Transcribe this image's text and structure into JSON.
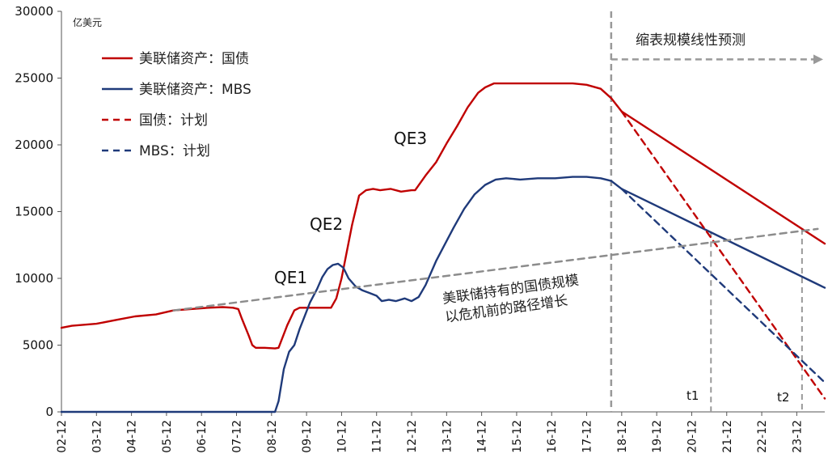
{
  "chart_data": {
    "type": "line",
    "unit_label": "亿美元",
    "ylim": [
      0,
      30000
    ],
    "y_ticks": [
      0,
      5000,
      10000,
      15000,
      20000,
      25000,
      30000
    ],
    "x_categories": [
      "02-12",
      "03-12",
      "04-12",
      "05-12",
      "06-12",
      "07-12",
      "08-12",
      "09-12",
      "10-12",
      "11-12",
      "12-12",
      "13-12",
      "14-12",
      "15-12",
      "16-12",
      "17-12",
      "18-12",
      "19-12",
      "20-12",
      "21-12",
      "22-12",
      "23-12"
    ],
    "x_range": [
      2002.9,
      2024.7
    ],
    "legend": [
      {
        "label": "美联储资产：国债",
        "color": "#c00000",
        "style": "solid"
      },
      {
        "label": "美联储资产：MBS",
        "color": "#1f3a7a",
        "style": "solid"
      },
      {
        "label": "国债：计划",
        "color": "#c00000",
        "style": "dashed"
      },
      {
        "label": "MBS：计划",
        "color": "#1f3a7a",
        "style": "dashed"
      }
    ],
    "series": [
      {
        "name": "美联储资产：国债",
        "color": "#c00000",
        "dash": false,
        "points": [
          [
            2002.9,
            6300
          ],
          [
            2003.2,
            6450
          ],
          [
            2003.9,
            6600
          ],
          [
            2004.5,
            6900
          ],
          [
            2005.0,
            7150
          ],
          [
            2005.6,
            7300
          ],
          [
            2006.1,
            7600
          ],
          [
            2006.6,
            7700
          ],
          [
            2007.1,
            7800
          ],
          [
            2007.5,
            7850
          ],
          [
            2007.8,
            7800
          ],
          [
            2007.95,
            7700
          ],
          [
            2008.05,
            7000
          ],
          [
            2008.25,
            5700
          ],
          [
            2008.35,
            5000
          ],
          [
            2008.45,
            4800
          ],
          [
            2008.7,
            4800
          ],
          [
            2009.0,
            4750
          ],
          [
            2009.1,
            4800
          ],
          [
            2009.35,
            6500
          ],
          [
            2009.55,
            7600
          ],
          [
            2009.7,
            7800
          ],
          [
            2010.2,
            7800
          ],
          [
            2010.6,
            7800
          ],
          [
            2010.75,
            8500
          ],
          [
            2010.9,
            10000
          ],
          [
            2011.05,
            12000
          ],
          [
            2011.2,
            14000
          ],
          [
            2011.4,
            16200
          ],
          [
            2011.6,
            16600
          ],
          [
            2011.8,
            16700
          ],
          [
            2012.0,
            16600
          ],
          [
            2012.3,
            16700
          ],
          [
            2012.6,
            16500
          ],
          [
            2012.9,
            16600
          ],
          [
            2013.0,
            16600
          ],
          [
            2013.3,
            17700
          ],
          [
            2013.6,
            18700
          ],
          [
            2013.9,
            20100
          ],
          [
            2014.2,
            21400
          ],
          [
            2014.5,
            22800
          ],
          [
            2014.8,
            23900
          ],
          [
            2015.0,
            24300
          ],
          [
            2015.25,
            24600
          ],
          [
            2015.5,
            24600
          ],
          [
            2016.0,
            24600
          ],
          [
            2016.5,
            24600
          ],
          [
            2017.0,
            24600
          ],
          [
            2017.5,
            24600
          ],
          [
            2017.9,
            24500
          ],
          [
            2018.3,
            24200
          ],
          [
            2018.6,
            23500
          ],
          [
            2018.9,
            22500
          ]
        ]
      },
      {
        "name": "美联储资产：国债（预测）",
        "color": "#c00000",
        "dash": false,
        "points": [
          [
            2018.9,
            22500
          ],
          [
            2024.7,
            12600
          ]
        ]
      },
      {
        "name": "美联储资产：MBS",
        "color": "#1f3a7a",
        "dash": false,
        "points": [
          [
            2002.9,
            0
          ],
          [
            2008.9,
            0
          ],
          [
            2009.0,
            0
          ],
          [
            2009.1,
            800
          ],
          [
            2009.25,
            3200
          ],
          [
            2009.4,
            4500
          ],
          [
            2009.55,
            5000
          ],
          [
            2009.7,
            6200
          ],
          [
            2009.85,
            7200
          ],
          [
            2010.0,
            8200
          ],
          [
            2010.2,
            9200
          ],
          [
            2010.35,
            10100
          ],
          [
            2010.5,
            10700
          ],
          [
            2010.65,
            11000
          ],
          [
            2010.8,
            11100
          ],
          [
            2010.95,
            10800
          ],
          [
            2011.1,
            10000
          ],
          [
            2011.3,
            9400
          ],
          [
            2011.5,
            9100
          ],
          [
            2011.7,
            8900
          ],
          [
            2011.9,
            8700
          ],
          [
            2012.05,
            8300
          ],
          [
            2012.25,
            8400
          ],
          [
            2012.45,
            8300
          ],
          [
            2012.7,
            8500
          ],
          [
            2012.9,
            8300
          ],
          [
            2013.1,
            8600
          ],
          [
            2013.3,
            9500
          ],
          [
            2013.6,
            11300
          ],
          [
            2013.9,
            12800
          ],
          [
            2014.1,
            13800
          ],
          [
            2014.4,
            15200
          ],
          [
            2014.7,
            16300
          ],
          [
            2015.0,
            17000
          ],
          [
            2015.3,
            17400
          ],
          [
            2015.6,
            17500
          ],
          [
            2016.0,
            17400
          ],
          [
            2016.5,
            17500
          ],
          [
            2017.0,
            17500
          ],
          [
            2017.5,
            17600
          ],
          [
            2017.9,
            17600
          ],
          [
            2018.3,
            17500
          ],
          [
            2018.6,
            17300
          ],
          [
            2018.9,
            16700
          ]
        ]
      },
      {
        "name": "美联储资产：MBS（预测）",
        "color": "#1f3a7a",
        "dash": false,
        "points": [
          [
            2018.9,
            16700
          ],
          [
            2024.7,
            9300
          ]
        ]
      },
      {
        "name": "国债：计划",
        "color": "#c00000",
        "dash": true,
        "points": [
          [
            2018.9,
            22500
          ],
          [
            2024.7,
            1000
          ]
        ]
      },
      {
        "name": "MBS：计划",
        "color": "#1f3a7a",
        "dash": true,
        "points": [
          [
            2018.9,
            16700
          ],
          [
            2024.7,
            2200
          ]
        ]
      },
      {
        "name": "美联储持有的国债规模以危机前的路径增长",
        "color": "#8c8c8c",
        "dash": true,
        "width": 2.5,
        "points": [
          [
            2006.1,
            7600
          ],
          [
            2024.5,
            13700
          ]
        ]
      }
    ],
    "annotations": {
      "qe1": "QE1",
      "qe2": "QE2",
      "qe3": "QE3",
      "forecast_label": "缩表规模线性预测",
      "trend_note_line1": "美联储持有的国债规模",
      "trend_note_line2": "以危机前的路径增长",
      "t1": "t1",
      "t2": "t2"
    },
    "reference_x": {
      "forecast_start": 2018.6,
      "t1": 2021.45,
      "t2": 2024.05
    },
    "grid": false
  }
}
